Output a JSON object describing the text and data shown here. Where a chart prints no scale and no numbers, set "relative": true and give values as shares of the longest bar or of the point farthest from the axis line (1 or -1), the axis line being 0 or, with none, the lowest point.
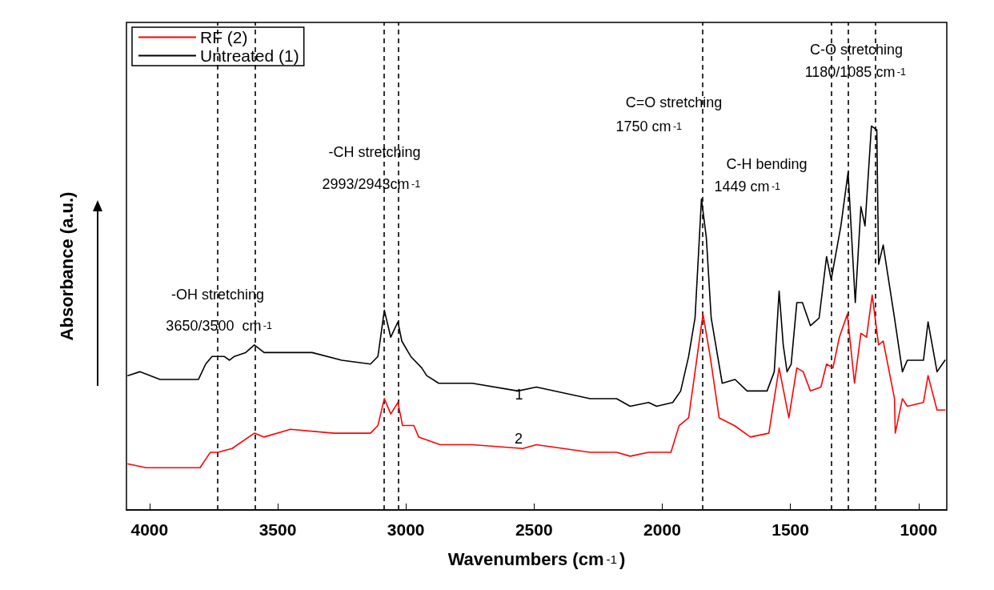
{
  "chart_data": {
    "type": "line",
    "xlabel": "Wavenumbers (cm$^{-1}$)",
    "ylabel": "Absorbance (a.u.)",
    "relative": true,
    "xlim": [
      4090,
      890
    ],
    "xticks": [
      4000,
      3500,
      3000,
      2500,
      2000,
      1500,
      1000
    ],
    "legend": "top left",
    "grid": false,
    "marker": "none",
    "line_style": "solid",
    "series": [
      {
        "name": "RF (2)",
        "color": "#ff0000",
        "x": [
          4084,
          4013,
          3803,
          3763,
          3734,
          3678,
          3591,
          3553,
          3450,
          3281,
          3138,
          3109,
          3084,
          3059,
          3031,
          3013,
          2969,
          2950,
          2866,
          2741,
          2544,
          2491,
          2281,
          2178,
          2125,
          2053,
          1966,
          1934,
          1897,
          1872,
          1841,
          1813,
          1778,
          1719,
          1656,
          1584,
          1563,
          1544,
          1506,
          1475,
          1450,
          1422,
          1381,
          1359,
          1334,
          1309,
          1278,
          1250,
          1225,
          1203,
          1181,
          1156,
          1138,
          1094,
          1091,
          1063,
          1044,
          981,
          963,
          928,
          897
        ],
        "values": [
          0.12,
          0.11,
          0.11,
          0.15,
          0.15,
          0.16,
          0.2,
          0.19,
          0.21,
          0.2,
          0.2,
          0.22,
          0.29,
          0.25,
          0.28,
          0.22,
          0.22,
          0.19,
          0.17,
          0.17,
          0.16,
          0.17,
          0.15,
          0.15,
          0.14,
          0.15,
          0.15,
          0.22,
          0.24,
          0.36,
          0.51,
          0.4,
          0.24,
          0.22,
          0.19,
          0.2,
          0.29,
          0.37,
          0.24,
          0.37,
          0.36,
          0.31,
          0.32,
          0.38,
          0.37,
          0.45,
          0.51,
          0.33,
          0.46,
          0.45,
          0.56,
          0.43,
          0.44,
          0.29,
          0.2,
          0.29,
          0.27,
          0.28,
          0.35,
          0.26,
          0.26
        ]
      },
      {
        "name": "Untreated (1)",
        "color": "#000000",
        "x": [
          4084,
          4038,
          3959,
          3875,
          3809,
          3781,
          3756,
          3734,
          3709,
          3688,
          3669,
          3625,
          3591,
          3553,
          3459,
          3366,
          3250,
          3138,
          3109,
          3084,
          3059,
          3031,
          3016,
          2981,
          2938,
          2919,
          2872,
          2741,
          2563,
          2491,
          2281,
          2178,
          2125,
          2053,
          2022,
          1959,
          1928,
          1897,
          1872,
          1847,
          1828,
          1809,
          1766,
          1716,
          1669,
          1591,
          1563,
          1544,
          1528,
          1513,
          1497,
          1475,
          1453,
          1422,
          1388,
          1359,
          1341,
          1303,
          1275,
          1247,
          1225,
          1209,
          1184,
          1163,
          1156,
          1138,
          1094,
          1063,
          1044,
          981,
          963,
          928,
          897
        ],
        "values": [
          0.35,
          0.36,
          0.34,
          0.34,
          0.34,
          0.38,
          0.4,
          0.4,
          0.4,
          0.39,
          0.4,
          0.41,
          0.43,
          0.41,
          0.41,
          0.41,
          0.39,
          0.38,
          0.4,
          0.52,
          0.45,
          0.49,
          0.44,
          0.4,
          0.37,
          0.35,
          0.33,
          0.33,
          0.31,
          0.32,
          0.29,
          0.29,
          0.27,
          0.28,
          0.27,
          0.28,
          0.31,
          0.4,
          0.5,
          0.81,
          0.71,
          0.5,
          0.33,
          0.34,
          0.31,
          0.31,
          0.36,
          0.57,
          0.43,
          0.36,
          0.38,
          0.54,
          0.54,
          0.48,
          0.5,
          0.66,
          0.6,
          0.74,
          0.88,
          0.54,
          0.79,
          0.74,
          1.0,
          0.99,
          0.64,
          0.69,
          0.5,
          0.36,
          0.39,
          0.39,
          0.49,
          0.36,
          0.39
        ]
      }
    ],
    "ref_lines": [
      {
        "axis": "x",
        "value": 3734,
        "color": "#000000",
        "line_style": "dashed"
      },
      {
        "axis": "x",
        "value": 3588,
        "color": "#000000",
        "line_style": "dashed"
      },
      {
        "axis": "x",
        "value": 3084,
        "color": "#000000",
        "line_style": "dashed"
      },
      {
        "axis": "x",
        "value": 3028,
        "color": "#000000",
        "line_style": "dashed"
      },
      {
        "axis": "x",
        "value": 1844,
        "color": "#000000",
        "line_style": "dashed"
      },
      {
        "axis": "x",
        "value": 1341,
        "color": "#000000",
        "line_style": "dashed"
      },
      {
        "axis": "x",
        "value": 1275,
        "color": "#000000",
        "line_style": "dashed"
      },
      {
        "axis": "x",
        "value": 1169,
        "color": "#000000",
        "line_style": "dashed"
      }
    ],
    "annotations": [
      {
        "text": "-OH stretching",
        "x": 3734,
        "y": 0.56
      },
      {
        "text": "3650/3500  cm$^{-1}$",
        "x": 3725,
        "y": 0.48
      },
      "-CH stretching",
      "2993/2943cm$^{-1}$",
      "C=O stretching",
      "1750 cm$^{-1}$",
      "C-H bending",
      "1449 cm$^{-1}$",
      "C-O stretching",
      "1180/1085 cm$^{-1}$",
      {
        "text": "1",
        "x": 2559,
        "y": 0.3
      },
      "2"
    ]
  }
}
